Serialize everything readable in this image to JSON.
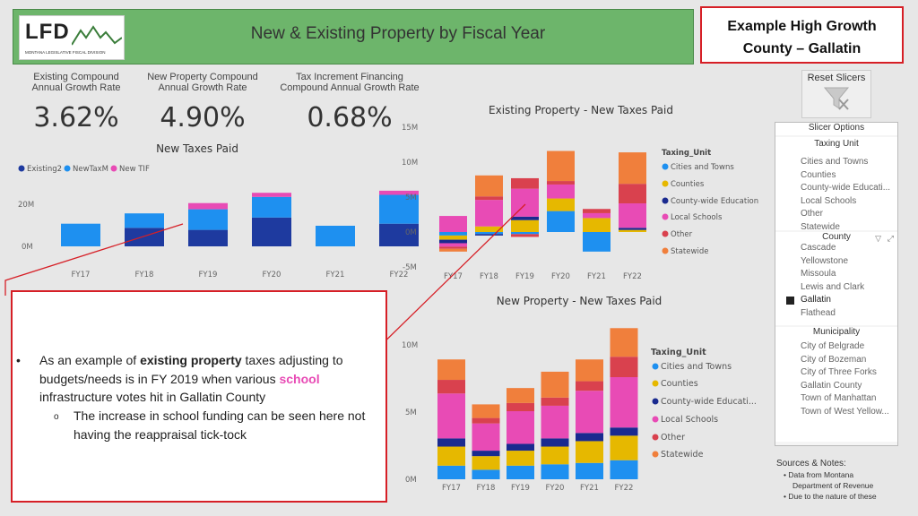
{
  "header": {
    "logo": "LFD",
    "logo_sub": "MONTANA LEGISLATIVE FISCAL DIVISION",
    "title": "New & Existing Property by Fiscal Year"
  },
  "example_box": {
    "line1": "Example High Growth",
    "line2": "County – Gallatin"
  },
  "kpis": [
    {
      "label1": "Existing Compound",
      "label2": "Annual Growth Rate",
      "value": "3.62%"
    },
    {
      "label1": "New Property Compound",
      "label2": "Annual Growth Rate",
      "value": "4.90%"
    },
    {
      "label1": "Tax Increment Financing",
      "label2": "Compound Annual Growth Rate",
      "value": "0.68%"
    }
  ],
  "reset_slicers": "Reset Slicers",
  "slicer_panel": {
    "title": "Slicer Options",
    "taxing_unit": {
      "title": "Taxing Unit",
      "items": [
        "Cities and Towns",
        "Counties",
        "County-wide Educati...",
        "Local Schools",
        "Other",
        "Statewide"
      ]
    },
    "county": {
      "title": "County",
      "items": [
        "Cascade",
        "Yellowstone",
        "Missoula",
        "Lewis and Clark",
        "Gallatin",
        "Flathead"
      ],
      "selected": "Gallatin"
    },
    "municipality": {
      "title": "Municipality",
      "items": [
        "City of Belgrade",
        "City of Bozeman",
        "City of Three Forks",
        "Gallatin County",
        "Town of Manhattan",
        "Town of West Yellow..."
      ]
    }
  },
  "notes": {
    "title": "Sources & Notes:",
    "lines": [
      "• Data from Montana",
      "Department of Revenue",
      "• Due to the nature of these"
    ]
  },
  "annotation": {
    "bullet": "•",
    "pre": "As an example of ",
    "bold": "existing property",
    "mid": " taxes adjusting to budgets/needs is in FY 2019 when various ",
    "school": "school",
    "post": " infrastructure votes hit in Gallatin County",
    "sub_bullet": "o",
    "sub_text": "The increase in school funding can be seen here not having the reappraisal tick-tock"
  },
  "colors": {
    "cities": "#1e90f0",
    "counties": "#e6b800",
    "countywide": "#1a2a8f",
    "schools": "#e84bb5",
    "other": "#d9414e",
    "statewide": "#f07f3c",
    "existing": "#1e3a9f",
    "newtax": "#1e90f0",
    "newtif": "#e84bb5"
  },
  "chart_data": [
    {
      "type": "bar",
      "title": "New Taxes Paid",
      "categories": [
        "FY17",
        "FY18",
        "FY19",
        "FY20",
        "FY21",
        "FY22"
      ],
      "legend": [
        "Existing2",
        "NewTaxM",
        "New TIF"
      ],
      "yticks": [
        "20M",
        "0M"
      ],
      "series": [
        {
          "name": "Existing2",
          "values": [
            0,
            9,
            8,
            14,
            0,
            11
          ]
        },
        {
          "name": "NewTaxM",
          "values": [
            11,
            7,
            10,
            10,
            10,
            14
          ]
        },
        {
          "name": "New TIF",
          "values": [
            0,
            0,
            3,
            2,
            0,
            2
          ]
        }
      ]
    },
    {
      "type": "bar",
      "title": "Existing Property - New Taxes Paid",
      "categories": [
        "FY17",
        "FY18",
        "FY19",
        "FY20",
        "FY21",
        "FY22"
      ],
      "yticks": [
        "15M",
        "10M",
        "5M",
        "0M",
        "-5M"
      ],
      "ylim": [
        -5,
        15
      ],
      "legend_title": "Taxing_Unit",
      "legend": [
        "Cities and Towns",
        "Counties",
        "County-wide Education",
        "Local Schools",
        "Other",
        "Statewide"
      ],
      "series": [
        {
          "name": "Cities and Towns",
          "pos": [
            0,
            0,
            0,
            3,
            0,
            0
          ],
          "neg": [
            -0.5,
            -0.3,
            -0.3,
            0,
            -2.8,
            0
          ]
        },
        {
          "name": "Counties",
          "pos": [
            0,
            0.8,
            1.7,
            1.8,
            2,
            0.3
          ],
          "neg": [
            -0.6,
            0,
            0,
            0,
            0,
            0
          ]
        },
        {
          "name": "County-wide Education",
          "pos": [
            0,
            0,
            0.5,
            0,
            0,
            0.3
          ],
          "neg": [
            -0.5,
            -0.2,
            0,
            0,
            0,
            0
          ]
        },
        {
          "name": "Local Schools",
          "pos": [
            2.3,
            3.8,
            4,
            2,
            0.7,
            3.5
          ],
          "neg": [
            -0.5,
            0,
            0,
            0,
            0,
            0
          ]
        },
        {
          "name": "Other",
          "pos": [
            0,
            0.5,
            1.5,
            0.5,
            0.6,
            2.8
          ],
          "neg": [
            -0.3,
            0,
            -0.4,
            0,
            0,
            0
          ]
        },
        {
          "name": "Statewide",
          "pos": [
            0,
            3,
            0,
            4.3,
            0,
            4.5
          ],
          "neg": [
            -0.4,
            0,
            0,
            0,
            0,
            0
          ]
        }
      ]
    },
    {
      "type": "bar",
      "title": "New Property - New Taxes Paid",
      "categories": [
        "FY17",
        "FY18",
        "FY19",
        "FY20",
        "FY21",
        "FY22"
      ],
      "yticks": [
        "10M",
        "5M",
        "0M"
      ],
      "ylim": [
        0,
        12
      ],
      "legend_title": "Taxing_Unit",
      "legend": [
        "Cities and Towns",
        "Counties",
        "County-wide Educati...",
        "Local Schools",
        "Other",
        "Statewide"
      ],
      "series": [
        {
          "name": "Cities and Towns",
          "values": [
            1,
            0.7,
            1,
            1.1,
            1.2,
            1.4
          ]
        },
        {
          "name": "Counties",
          "values": [
            1.4,
            1,
            1.1,
            1.3,
            1.6,
            1.8
          ]
        },
        {
          "name": "County-wide Education",
          "values": [
            0.6,
            0.4,
            0.5,
            0.6,
            0.6,
            0.6
          ]
        },
        {
          "name": "Local Schools",
          "values": [
            3.3,
            2,
            2.4,
            2.4,
            3.1,
            3.7
          ]
        },
        {
          "name": "Other",
          "values": [
            1,
            0.4,
            0.6,
            0.6,
            0.7,
            1.5
          ]
        },
        {
          "name": "Statewide",
          "values": [
            1.5,
            1,
            1.1,
            1.9,
            1.6,
            2.1
          ]
        }
      ]
    }
  ]
}
